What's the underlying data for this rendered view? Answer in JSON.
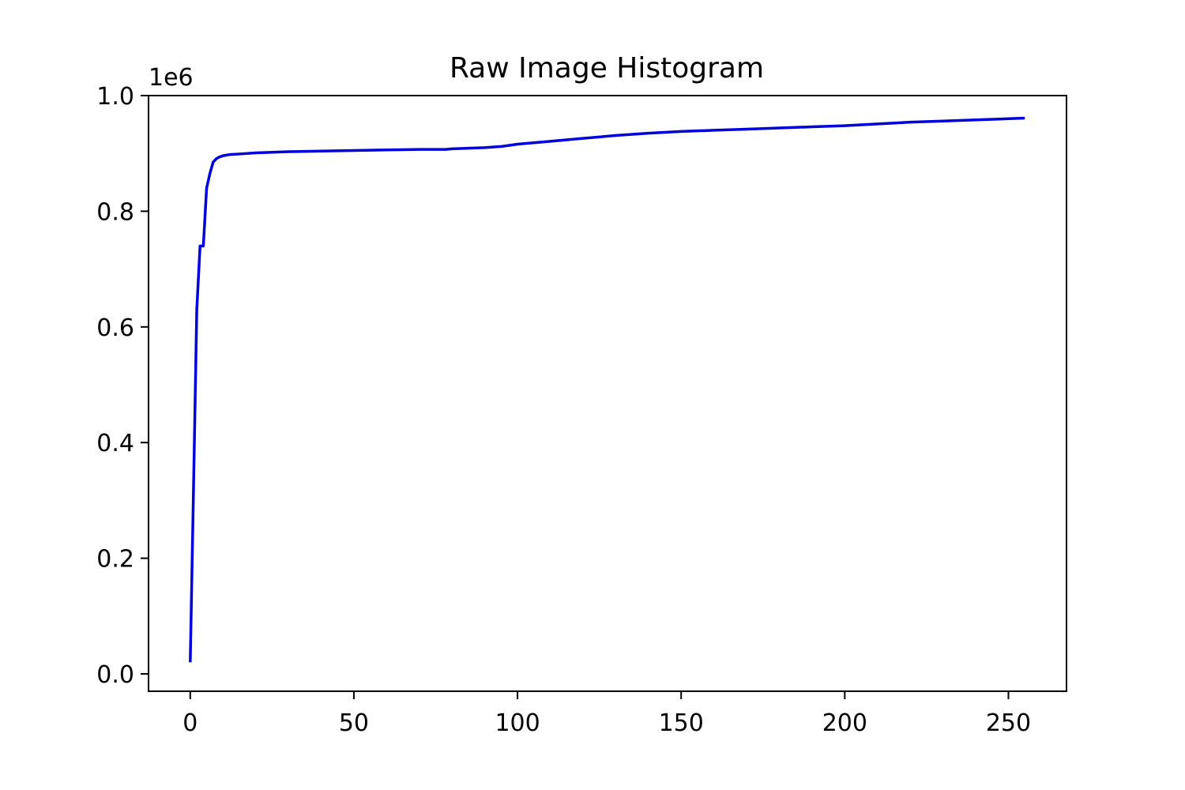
{
  "chart_data": {
    "type": "line",
    "title": "Raw Image Histogram",
    "xlabel": "",
    "ylabel": "",
    "y_offset_label": "1e6",
    "xlim": [
      -12.75,
      267.75
    ],
    "ylim": [
      -0.03,
      1.0
    ],
    "x_ticks": [
      0,
      50,
      100,
      150,
      200,
      250
    ],
    "x_tick_labels": [
      "0",
      "50",
      "100",
      "150",
      "200",
      "250"
    ],
    "y_ticks": [
      0.0,
      0.2,
      0.4,
      0.6,
      0.8,
      1.0
    ],
    "y_tick_labels": [
      "0.0",
      "0.2",
      "0.4",
      "0.6",
      "0.8",
      "1.0"
    ],
    "grid": false,
    "series": [
      {
        "color": "#0000dd",
        "x": [
          0,
          1,
          2,
          3,
          4,
          5,
          6,
          7,
          8,
          9,
          10,
          12,
          15,
          20,
          30,
          40,
          50,
          60,
          70,
          78,
          80,
          90,
          95,
          100,
          110,
          120,
          130,
          140,
          150,
          160,
          170,
          180,
          190,
          200,
          210,
          220,
          230,
          240,
          250,
          255
        ],
        "y": [
          0.02,
          0.32,
          0.63,
          0.74,
          0.74,
          0.84,
          0.865,
          0.885,
          0.891,
          0.894,
          0.896,
          0.898,
          0.899,
          0.901,
          0.903,
          0.904,
          0.905,
          0.906,
          0.907,
          0.907,
          0.908,
          0.91,
          0.912,
          0.916,
          0.921,
          0.926,
          0.931,
          0.935,
          0.938,
          0.94,
          0.942,
          0.944,
          0.946,
          0.948,
          0.951,
          0.954,
          0.956,
          0.958,
          0.96,
          0.961
        ]
      }
    ]
  }
}
